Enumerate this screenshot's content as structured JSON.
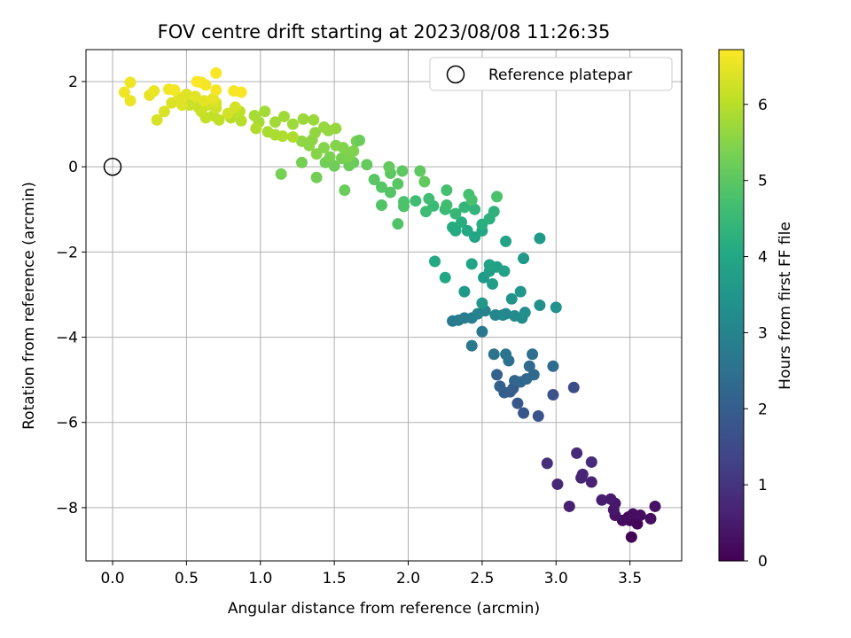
{
  "chart_data": {
    "type": "scatter",
    "title": "FOV centre drift starting at 2023/08/08 11:26:35",
    "xlabel": "Angular distance from reference (arcmin)",
    "ylabel": "Rotation from reference (arcmin)",
    "xlim": [
      -0.18,
      3.85
    ],
    "ylim": [
      -9.25,
      2.75
    ],
    "xticks": [
      0.0,
      0.5,
      1.0,
      1.5,
      2.0,
      2.5,
      3.0,
      3.5
    ],
    "xtick_labels": [
      "0.0",
      "0.5",
      "1.0",
      "1.5",
      "2.0",
      "2.5",
      "3.0",
      "3.5"
    ],
    "yticks": [
      2,
      0,
      -2,
      -4,
      -6,
      -8
    ],
    "ytick_labels": [
      "2",
      "0",
      "−2",
      "−4",
      "−6",
      "−8"
    ],
    "grid": true,
    "legend_position": "top-right",
    "legend": [
      {
        "label": "Reference platepar",
        "marker": "open-circle"
      }
    ],
    "reference_point": {
      "x": 0,
      "y": 0
    },
    "colorbar": {
      "label": "Hours from first FF file",
      "colormap": "viridis",
      "range": [
        0,
        6.72
      ],
      "ticks": [
        0,
        1,
        2,
        3,
        4,
        5,
        6
      ],
      "tick_labels": [
        "0",
        "1",
        "2",
        "3",
        "4",
        "5",
        "6"
      ]
    },
    "points": [
      [
        3.51,
        -8.69,
        0.05
      ],
      [
        3.55,
        -8.38,
        0.12
      ],
      [
        3.5,
        -8.3,
        0.1
      ],
      [
        3.49,
        -8.22,
        0.18
      ],
      [
        3.45,
        -8.3,
        0.2
      ],
      [
        3.52,
        -8.15,
        0.22
      ],
      [
        3.57,
        -8.18,
        0.25
      ],
      [
        3.64,
        -8.26,
        0.28
      ],
      [
        3.67,
        -7.97,
        0.3
      ],
      [
        3.4,
        -8.18,
        0.35
      ],
      [
        3.39,
        -8.05,
        0.4
      ],
      [
        3.4,
        -7.9,
        0.45
      ],
      [
        3.37,
        -7.8,
        0.5
      ],
      [
        3.31,
        -7.82,
        0.55
      ],
      [
        3.09,
        -7.97,
        0.6
      ],
      [
        3.24,
        -7.4,
        0.65
      ],
      [
        3.18,
        -7.22,
        0.7
      ],
      [
        3.17,
        -7.3,
        0.72
      ],
      [
        3.01,
        -7.45,
        0.78
      ],
      [
        3.14,
        -6.72,
        0.82
      ],
      [
        3.24,
        -6.93,
        0.85
      ],
      [
        2.94,
        -6.96,
        0.9
      ],
      [
        3.12,
        -5.18,
        1.6
      ],
      [
        2.98,
        -5.35,
        1.7
      ],
      [
        2.88,
        -5.85,
        1.75
      ],
      [
        2.78,
        -5.78,
        1.8
      ],
      [
        2.74,
        -5.55,
        1.85
      ],
      [
        2.71,
        -5.2,
        1.9
      ],
      [
        2.65,
        -5.3,
        1.95
      ],
      [
        2.69,
        -5.28,
        2.0
      ],
      [
        2.62,
        -5.15,
        2.05
      ],
      [
        2.6,
        -4.88,
        2.1
      ],
      [
        2.72,
        -5.02,
        2.15
      ],
      [
        2.76,
        -5.05,
        2.2
      ],
      [
        2.8,
        -4.98,
        2.25
      ],
      [
        2.85,
        -4.88,
        2.3
      ],
      [
        2.82,
        -4.68,
        2.35
      ],
      [
        2.98,
        -4.68,
        2.4
      ],
      [
        2.84,
        -4.4,
        2.45
      ],
      [
        2.68,
        -4.55,
        2.5
      ],
      [
        2.58,
        -4.4,
        2.55
      ],
      [
        2.66,
        -4.4,
        2.6
      ],
      [
        2.43,
        -4.2,
        2.65
      ],
      [
        2.5,
        -3.87,
        2.7
      ],
      [
        2.3,
        -3.62,
        2.75
      ],
      [
        2.34,
        -3.6,
        2.8
      ],
      [
        2.38,
        -3.55,
        2.85
      ],
      [
        2.43,
        -3.55,
        2.9
      ],
      [
        2.47,
        -3.45,
        2.95
      ],
      [
        2.52,
        -3.38,
        3.0
      ],
      [
        2.59,
        -3.48,
        3.05
      ],
      [
        2.64,
        -3.48,
        3.1
      ],
      [
        2.66,
        -3.45,
        3.15
      ],
      [
        2.72,
        -3.5,
        3.2
      ],
      [
        2.77,
        -3.55,
        3.25
      ],
      [
        2.79,
        -3.42,
        3.3
      ],
      [
        2.89,
        -3.25,
        3.35
      ],
      [
        3.0,
        -3.3,
        3.4
      ],
      [
        2.7,
        -3.1,
        3.45
      ],
      [
        2.76,
        -2.93,
        3.5
      ],
      [
        2.5,
        -3.2,
        3.55
      ],
      [
        2.38,
        -2.93,
        3.6
      ],
      [
        2.51,
        -2.6,
        3.65
      ],
      [
        2.57,
        -2.75,
        3.7
      ],
      [
        2.55,
        -2.45,
        3.75
      ],
      [
        2.6,
        -2.35,
        3.8
      ],
      [
        2.65,
        -2.45,
        3.85
      ],
      [
        2.55,
        -2.3,
        3.9
      ],
      [
        2.43,
        -2.28,
        3.95
      ],
      [
        2.25,
        -2.6,
        4.0
      ],
      [
        2.18,
        -2.22,
        4.05
      ],
      [
        2.78,
        -2.15,
        3.6
      ],
      [
        2.89,
        -1.68,
        3.65
      ],
      [
        2.66,
        -1.75,
        3.9
      ],
      [
        2.45,
        -1.65,
        3.95
      ],
      [
        2.5,
        -1.5,
        4.0
      ],
      [
        2.4,
        -1.5,
        4.05
      ],
      [
        2.32,
        -1.5,
        4.1
      ],
      [
        2.3,
        -1.42,
        4.12
      ],
      [
        2.36,
        -1.3,
        4.15
      ],
      [
        2.5,
        -1.35,
        4.2
      ],
      [
        2.55,
        -1.22,
        4.25
      ],
      [
        2.58,
        -1.05,
        4.3
      ],
      [
        2.45,
        -1.0,
        4.35
      ],
      [
        2.38,
        -0.95,
        4.4
      ],
      [
        2.32,
        -1.1,
        4.45
      ],
      [
        2.25,
        -1.0,
        4.5
      ],
      [
        2.17,
        -0.92,
        4.55
      ],
      [
        2.12,
        -1.05,
        4.58
      ],
      [
        2.05,
        -0.8,
        4.6
      ],
      [
        2.14,
        -0.75,
        4.62
      ],
      [
        2.26,
        -0.9,
        4.65
      ],
      [
        2.26,
        -0.55,
        4.7
      ],
      [
        2.41,
        -0.65,
        4.72
      ],
      [
        2.43,
        -0.78,
        4.75
      ],
      [
        2.6,
        -0.7,
        4.78
      ],
      [
        1.97,
        -0.82,
        4.8
      ],
      [
        1.97,
        -0.93,
        4.82
      ],
      [
        1.93,
        -1.34,
        4.85
      ],
      [
        1.82,
        -0.9,
        4.88
      ],
      [
        1.88,
        -0.6,
        4.9
      ],
      [
        1.82,
        -0.48,
        4.92
      ],
      [
        1.77,
        -0.3,
        4.95
      ],
      [
        1.93,
        -0.4,
        4.97
      ],
      [
        1.88,
        -0.15,
        5.0
      ],
      [
        1.96,
        -0.1,
        5.02
      ],
      [
        2.08,
        -0.1,
        5.05
      ],
      [
        2.11,
        -0.35,
        5.08
      ],
      [
        1.87,
        0.0,
        5.1
      ],
      [
        1.72,
        0.05,
        5.12
      ],
      [
        1.63,
        0.1,
        5.15
      ],
      [
        1.57,
        -0.55,
        5.18
      ],
      [
        1.6,
        0.03,
        5.2
      ],
      [
        1.5,
        0.02,
        5.22
      ],
      [
        1.44,
        0.1,
        5.25
      ],
      [
        1.38,
        -0.25,
        5.28
      ],
      [
        1.28,
        0.1,
        5.3
      ],
      [
        1.14,
        -0.17,
        5.32
      ],
      [
        1.55,
        0.2,
        5.35
      ],
      [
        1.47,
        0.23,
        5.38
      ],
      [
        1.6,
        0.25,
        5.4
      ],
      [
        1.63,
        0.37,
        5.42
      ],
      [
        1.56,
        0.45,
        5.45
      ],
      [
        1.51,
        0.5,
        5.48
      ],
      [
        1.43,
        0.45,
        5.5
      ],
      [
        1.38,
        0.3,
        5.52
      ],
      [
        1.33,
        0.5,
        5.55
      ],
      [
        1.35,
        0.63,
        5.58
      ],
      [
        1.28,
        0.6,
        5.6
      ],
      [
        1.37,
        0.8,
        5.62
      ],
      [
        1.46,
        0.85,
        5.64
      ],
      [
        1.51,
        0.9,
        5.66
      ],
      [
        1.43,
        0.93,
        5.68
      ],
      [
        1.36,
        1.1,
        5.7
      ],
      [
        1.29,
        1.12,
        5.72
      ],
      [
        1.22,
        1.0,
        5.74
      ],
      [
        1.16,
        1.18,
        5.76
      ],
      [
        1.1,
        1.05,
        5.78
      ],
      [
        1.03,
        1.3,
        5.8
      ],
      [
        0.99,
        1.05,
        5.82
      ],
      [
        0.96,
        1.2,
        5.84
      ],
      [
        1.05,
        0.82,
        5.86
      ],
      [
        1.1,
        0.75,
        5.88
      ],
      [
        1.15,
        0.72,
        5.9
      ],
      [
        1.22,
        0.7,
        5.92
      ],
      [
        1.65,
        0.6,
        5.35
      ],
      [
        1.67,
        0.62,
        5.2
      ],
      [
        0.97,
        0.9,
        5.95
      ],
      [
        0.87,
        1.08,
        6.0
      ],
      [
        0.8,
        1.15,
        6.02
      ],
      [
        0.86,
        1.3,
        6.05
      ],
      [
        0.72,
        1.1,
        6.08
      ],
      [
        0.68,
        1.2,
        6.1
      ],
      [
        0.63,
        1.15,
        6.12
      ],
      [
        0.6,
        1.3,
        6.15
      ],
      [
        0.52,
        1.45,
        6.18
      ],
      [
        0.58,
        1.4,
        6.2
      ],
      [
        0.64,
        1.45,
        6.22
      ],
      [
        0.7,
        1.38,
        6.24
      ],
      [
        0.78,
        1.25,
        6.26
      ],
      [
        0.83,
        1.4,
        6.28
      ],
      [
        0.7,
        1.5,
        6.3
      ],
      [
        0.3,
        1.1,
        6.32
      ],
      [
        0.35,
        1.3,
        6.34
      ],
      [
        0.4,
        1.5,
        6.36
      ],
      [
        0.47,
        1.45,
        6.38
      ],
      [
        0.5,
        1.7,
        6.4
      ],
      [
        0.45,
        1.62,
        6.42
      ],
      [
        0.56,
        1.65,
        6.44
      ],
      [
        0.62,
        1.55,
        6.46
      ],
      [
        0.68,
        1.6,
        6.48
      ],
      [
        0.25,
        1.68,
        6.5
      ],
      [
        0.28,
        1.78,
        6.52
      ],
      [
        0.12,
        1.55,
        6.54
      ],
      [
        0.08,
        1.75,
        6.56
      ],
      [
        0.12,
        1.98,
        6.58
      ],
      [
        0.38,
        1.82,
        6.6
      ],
      [
        0.42,
        1.8,
        6.6
      ],
      [
        0.6,
        1.98,
        6.62
      ],
      [
        0.63,
        1.92,
        6.64
      ],
      [
        0.7,
        1.8,
        6.65
      ],
      [
        0.7,
        2.2,
        6.68
      ],
      [
        0.82,
        1.78,
        6.66
      ],
      [
        0.87,
        1.75,
        6.67
      ],
      [
        0.57,
        2.0,
        6.7
      ]
    ]
  }
}
